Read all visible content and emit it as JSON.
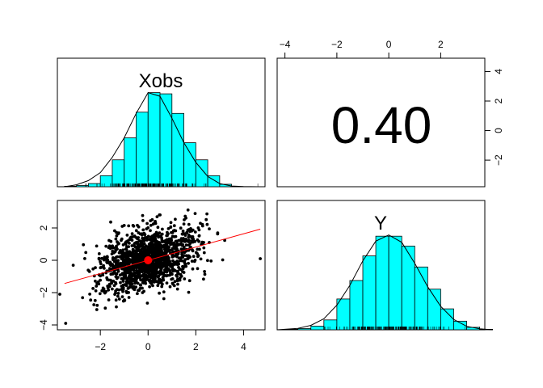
{
  "chart_data": [
    {
      "type": "bar",
      "variable": "Xobs",
      "title": "Xobs",
      "bins": [
        -4,
        -3.5,
        -3,
        -2.5,
        -2,
        -1.5,
        -1,
        -0.5,
        0,
        0.5,
        1,
        1.5,
        2,
        2.5,
        3,
        3.5,
        4,
        4.5,
        5
      ],
      "density": [
        0,
        0.002,
        0.005,
        0.013,
        0.045,
        0.11,
        0.2,
        0.305,
        0.385,
        0.38,
        0.3,
        0.18,
        0.11,
        0.045,
        0.01,
        0,
        0,
        0
      ],
      "density_curve": [
        [
          -3.5,
          0.0
        ],
        [
          -3,
          0.008
        ],
        [
          -2.5,
          0.025
        ],
        [
          -2,
          0.058
        ],
        [
          -1.5,
          0.12
        ],
        [
          -1,
          0.2
        ],
        [
          -0.5,
          0.3
        ],
        [
          0,
          0.385
        ],
        [
          0.5,
          0.37
        ],
        [
          1,
          0.28
        ],
        [
          1.5,
          0.18
        ],
        [
          2,
          0.1
        ],
        [
          2.5,
          0.042
        ],
        [
          3,
          0.013
        ],
        [
          3.5,
          0.003
        ],
        [
          4,
          0.001
        ],
        [
          4.6,
          0.0
        ]
      ],
      "xlim": [
        -3.8,
        4.9
      ],
      "rug": true
    },
    {
      "type": "table",
      "label": "0.40",
      "correlation": 0.4,
      "top_axis": {
        "ticks": [
          -4,
          -2,
          0,
          2
        ]
      },
      "right_axis": {
        "ticks": [
          -2,
          0,
          2,
          4
        ]
      }
    },
    {
      "type": "scatter",
      "xlim": [
        -3.8,
        4.9
      ],
      "ylim": [
        -4.3,
        3.7
      ],
      "x_axis": {
        "ticks": [
          -2,
          0,
          2,
          4
        ]
      },
      "y_axis": {
        "ticks": [
          -4,
          -2,
          0,
          2
        ]
      },
      "n_points": 1500,
      "mean_point": {
        "x": 0,
        "y": 0
      },
      "fit_line": {
        "slope": 0.41,
        "intercept": 0,
        "x_from": -3.5,
        "x_to": 4.7
      },
      "colors": {
        "points": "#000000",
        "fit": "#ff0000",
        "center": "#ff0000"
      }
    },
    {
      "type": "bar",
      "variable": "Y",
      "title": "Y",
      "bins": [
        -4,
        -3.5,
        -3,
        -2.5,
        -2,
        -1.5,
        -1,
        -0.5,
        0,
        0.5,
        1,
        1.5,
        2,
        2.5,
        3,
        3.5,
        4
      ],
      "density": [
        0.002,
        0.005,
        0.015,
        0.04,
        0.125,
        0.2,
        0.3,
        0.38,
        0.38,
        0.34,
        0.255,
        0.165,
        0.085,
        0.035,
        0.01,
        0.002
      ],
      "density_curve": [
        [
          -4.3,
          0.0
        ],
        [
          -3.5,
          0.006
        ],
        [
          -3,
          0.018
        ],
        [
          -2.5,
          0.045
        ],
        [
          -2,
          0.1
        ],
        [
          -1.5,
          0.18
        ],
        [
          -1,
          0.28
        ],
        [
          -0.5,
          0.36
        ],
        [
          0,
          0.385
        ],
        [
          0.5,
          0.355
        ],
        [
          1,
          0.27
        ],
        [
          1.5,
          0.175
        ],
        [
          2,
          0.095
        ],
        [
          2.5,
          0.042
        ],
        [
          3,
          0.014
        ],
        [
          3.5,
          0.004
        ],
        [
          4,
          0.0
        ]
      ],
      "xlim": [
        -4.3,
        3.7
      ],
      "rug": true
    }
  ],
  "colors": {
    "hist_fill": "#00ffff",
    "ink": "#000000",
    "accent": "#ff0000"
  }
}
